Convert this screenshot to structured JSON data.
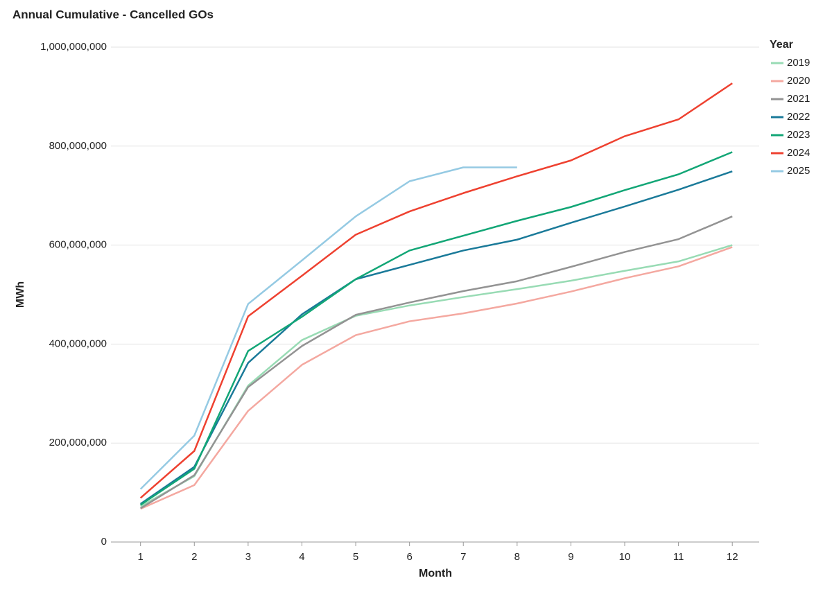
{
  "chart_data": {
    "type": "line",
    "title": "Annual Cumulative -  Cancelled GOs",
    "xlabel": "Month",
    "ylabel": "MWh",
    "legend_title": "Year",
    "legend": "right",
    "grid": true,
    "x": [
      1,
      2,
      3,
      4,
      5,
      6,
      7,
      8,
      9,
      10,
      11,
      12
    ],
    "xlim": [
      0.45,
      12.5
    ],
    "xticks": [
      1,
      2,
      3,
      4,
      5,
      6,
      7,
      8,
      9,
      10,
      11,
      12
    ],
    "ylim": [
      0,
      1000000000
    ],
    "yticks": [
      0,
      {
        "value": 200000000,
        "label": "200,000,000"
      },
      {
        "value": 400000000,
        "label": "400,000,000"
      },
      {
        "value": 600000000,
        "label": "600,000,000"
      },
      {
        "value": 800000000,
        "label": "800,000,000"
      },
      {
        "value": 1000000000,
        "label": "1,000,000,000"
      }
    ],
    "series": [
      {
        "name": "2019",
        "color": "#98dbb4",
        "values": [
          72000000,
          133000000,
          316000000,
          408000000,
          457000000,
          478000000,
          495000000,
          511000000,
          528000000,
          548000000,
          567000000,
          600000000
        ]
      },
      {
        "name": "2020",
        "color": "#f4a8a0",
        "values": [
          67000000,
          115000000,
          265000000,
          358000000,
          418000000,
          446000000,
          462000000,
          482000000,
          506000000,
          533000000,
          557000000,
          596000000
        ]
      },
      {
        "name": "2021",
        "color": "#939393",
        "values": [
          68000000,
          135000000,
          313000000,
          396000000,
          459000000,
          484000000,
          507000000,
          527000000,
          556000000,
          586000000,
          612000000,
          658000000
        ]
      },
      {
        "name": "2022",
        "color": "#1a7a99",
        "values": [
          77000000,
          152000000,
          362000000,
          460000000,
          531000000,
          560000000,
          589000000,
          611000000,
          645000000,
          678000000,
          712000000,
          749000000
        ]
      },
      {
        "name": "2023",
        "color": "#12a676",
        "values": [
          75000000,
          148000000,
          386000000,
          455000000,
          531000000,
          589000000,
          619000000,
          649000000,
          677000000,
          711000000,
          743000000,
          788000000
        ]
      },
      {
        "name": "2024",
        "color": "#ee4130",
        "values": [
          89000000,
          184000000,
          456000000,
          538000000,
          621000000,
          668000000,
          705000000,
          739000000,
          771000000,
          820000000,
          854000000,
          927000000
        ]
      },
      {
        "name": "2025",
        "color": "#95cae3",
        "values": [
          107000000,
          215000000,
          481000000,
          569000000,
          658000000,
          729000000,
          757000000,
          757000000,
          null,
          null,
          null,
          null
        ]
      }
    ]
  }
}
